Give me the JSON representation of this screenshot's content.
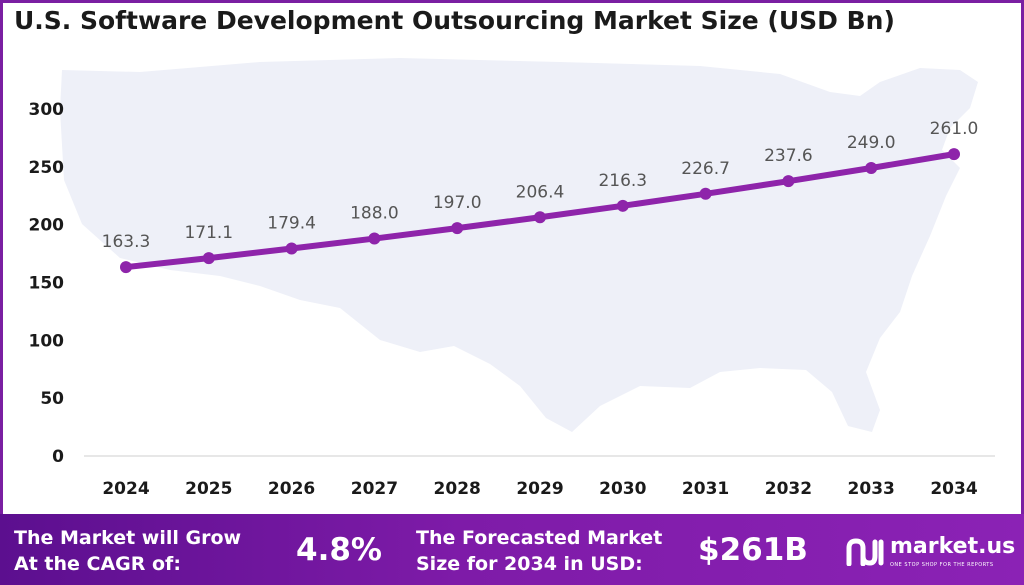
{
  "chart_data": {
    "type": "line",
    "title": "U.S. Software Development Outsourcing Market Size (USD Bn)",
    "categories": [
      "2024",
      "2025",
      "2026",
      "2027",
      "2028",
      "2029",
      "2030",
      "2031",
      "2032",
      "2033",
      "2034"
    ],
    "values": [
      163.3,
      171.1,
      179.4,
      188.0,
      197.0,
      206.4,
      216.3,
      226.7,
      237.6,
      249.0,
      261.0
    ],
    "data_labels": [
      "163.3",
      "171.1",
      "179.4",
      "188.0",
      "197.0",
      "206.4",
      "216.3",
      "226.7",
      "237.6",
      "249.0",
      "261.0"
    ],
    "yticks": [
      "0",
      "50",
      "100",
      "150",
      "200",
      "250",
      "300"
    ],
    "ylim": [
      0,
      300
    ],
    "xlabel": "",
    "ylabel": "",
    "grid": false,
    "line_color": "#8e24aa",
    "label_color": "#555555",
    "background_map_color": "#eef0f8"
  },
  "footer": {
    "cagr_line1": "The Market will Grow",
    "cagr_line2": "At the CAGR of:",
    "cagr_value": "4.8%",
    "forecast_line1": "The Forecasted Market",
    "forecast_line2": "Size for 2034 in USD:",
    "forecast_value": "$261B",
    "logo_icon": "market-us-logo-icon",
    "brand": "market.us",
    "tagline": "ONE STOP SHOP FOR THE REPORTS"
  }
}
